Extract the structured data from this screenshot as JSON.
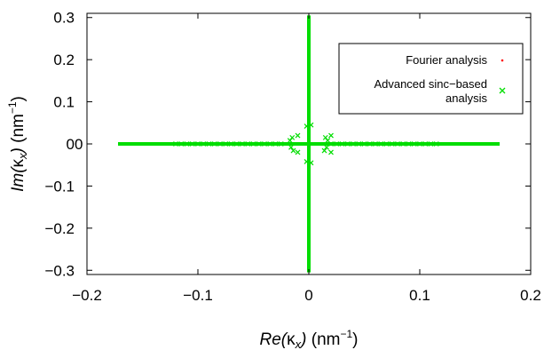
{
  "chart_data": {
    "type": "scatter",
    "xlabel": {
      "pre": "Re(",
      "sym": "κ",
      "sub": "x",
      "post": ")",
      "unit": " (nm",
      "sup": "−1",
      "close": ")"
    },
    "ylabel": {
      "pre": "Im(",
      "sym": "κ",
      "sub": "x",
      "post": ")",
      "unit": " (nm",
      "sup": "−1",
      "close": ")"
    },
    "xlim": [
      -0.2,
      0.2
    ],
    "ylim": [
      -0.31,
      0.31
    ],
    "xticks": [
      -0.2,
      -0.1,
      0,
      0.1,
      0.2
    ],
    "xtick_labels": [
      "−0.2",
      "−0.1",
      "0",
      "0.1",
      "0.2"
    ],
    "yticks": [
      -0.3,
      -0.2,
      -0.1,
      0,
      0.1,
      0.2,
      0.3
    ],
    "ytick_labels": [
      "−0.3",
      "−0.2",
      "−0.1",
      "0",
      "0.1",
      "0.2",
      "0.3"
    ],
    "zero_annotation": "0",
    "grid": false,
    "legend_position": "top-right",
    "series": [
      {
        "name": "Fourier analysis",
        "color": "#ff0000",
        "marker": "dot",
        "points": []
      },
      {
        "name": "Advanced sinc−based analysis",
        "name_lines": [
          "Advanced sinc−based",
          "analysis"
        ],
        "color": "#00dd00",
        "marker": "x",
        "segments": {
          "real_axis": {
            "x_from": -0.172,
            "x_to": 0.172,
            "y": 0
          },
          "imag_axis": {
            "x": 0,
            "y_from": -0.305,
            "y_to": 0.305
          }
        },
        "points": [
          {
            "x": -0.015,
            "y": 0.015
          },
          {
            "x": -0.017,
            "y": 0.008
          },
          {
            "x": -0.016,
            "y": -0.008
          },
          {
            "x": -0.014,
            "y": -0.016
          },
          {
            "x": -0.01,
            "y": -0.02
          },
          {
            "x": -0.01,
            "y": 0.02
          },
          {
            "x": 0.015,
            "y": 0.015
          },
          {
            "x": 0.017,
            "y": 0.008
          },
          {
            "x": 0.016,
            "y": -0.008
          },
          {
            "x": 0.014,
            "y": -0.016
          },
          {
            "x": 0.02,
            "y": -0.02
          },
          {
            "x": 0.02,
            "y": 0.02
          },
          {
            "x": 0.002,
            "y": 0.045
          },
          {
            "x": -0.002,
            "y": 0.042
          },
          {
            "x": 0.002,
            "y": -0.045
          },
          {
            "x": -0.002,
            "y": -0.042
          }
        ]
      }
    ]
  }
}
